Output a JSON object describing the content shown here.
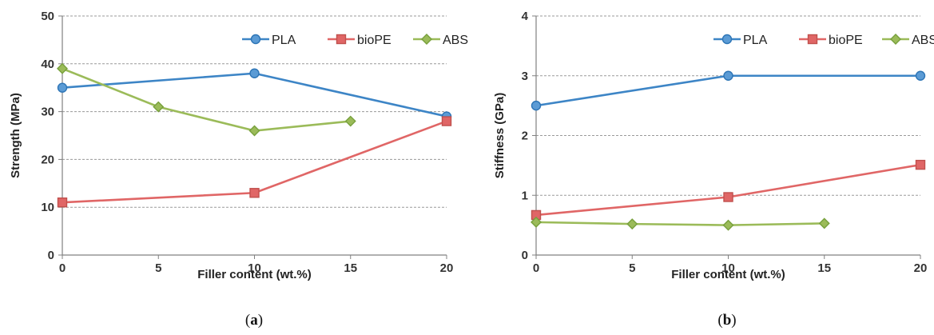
{
  "chart_data": [
    {
      "type": "line",
      "caption": "a",
      "xlabel": "Filler content (wt.%)",
      "ylabel": "Strength (MPa)",
      "xlim": [
        0,
        20
      ],
      "ylim": [
        0,
        50
      ],
      "xticks": [
        0,
        5,
        10,
        15,
        20
      ],
      "yticks": [
        0,
        10,
        20,
        30,
        40,
        50
      ],
      "grid": "horizontal dashed",
      "legend": "top-right",
      "series": [
        {
          "name": "PLA",
          "marker": "circle",
          "color": "#2e75b6",
          "fill": "#5b9bd5",
          "x": [
            0,
            10,
            20
          ],
          "y": [
            35,
            38,
            29
          ]
        },
        {
          "name": "bioPE",
          "marker": "square",
          "color": "#c0504d",
          "fill": "#e06666",
          "x": [
            0,
            10,
            20
          ],
          "y": [
            11,
            13,
            28
          ]
        },
        {
          "name": "ABS",
          "marker": "diamond",
          "color": "#77a03c",
          "fill": "#9bbb59",
          "x": [
            0,
            5,
            10,
            15
          ],
          "y": [
            39,
            31,
            26,
            28
          ]
        }
      ]
    },
    {
      "type": "line",
      "caption": "b",
      "xlabel": "Filler content (wt.%)",
      "ylabel": "Stiffness (GPa)",
      "xlim": [
        0,
        20
      ],
      "ylim": [
        0,
        4
      ],
      "xticks": [
        0,
        5,
        10,
        15,
        20
      ],
      "yticks": [
        0,
        1,
        2,
        3,
        4
      ],
      "grid": "horizontal dashed",
      "legend": "top-right",
      "series": [
        {
          "name": "PLA",
          "marker": "circle",
          "color": "#2e75b6",
          "fill": "#5b9bd5",
          "x": [
            0,
            10,
            20
          ],
          "y": [
            2.5,
            3.0,
            3.0
          ]
        },
        {
          "name": "bioPE",
          "marker": "square",
          "color": "#c0504d",
          "fill": "#e06666",
          "x": [
            0,
            10,
            20
          ],
          "y": [
            0.67,
            0.97,
            1.51
          ]
        },
        {
          "name": "ABS",
          "marker": "diamond",
          "color": "#77a03c",
          "fill": "#9bbb59",
          "x": [
            0,
            5,
            10,
            15
          ],
          "y": [
            0.55,
            0.52,
            0.5,
            0.53
          ]
        }
      ]
    }
  ]
}
